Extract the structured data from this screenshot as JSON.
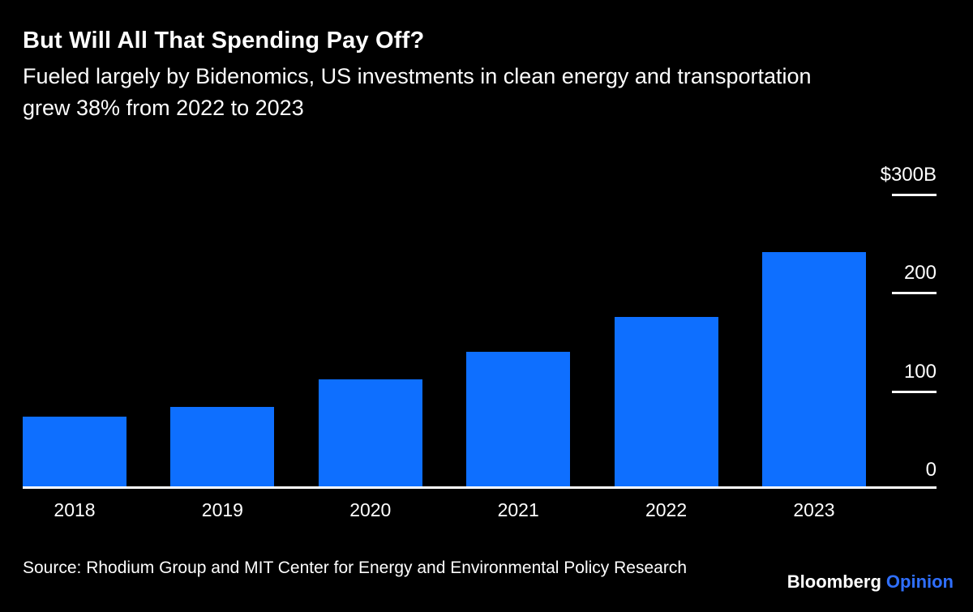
{
  "header": {
    "title": "But Will All That Spending Pay Off?",
    "subtitle": "Fueled largely by Bidenomics, US investments in clean energy and transportation grew 38% from 2022 to 2023"
  },
  "chart_data": {
    "type": "bar",
    "categories": [
      "2018",
      "2019",
      "2020",
      "2021",
      "2022",
      "2023"
    ],
    "values": [
      73,
      83,
      111,
      139,
      175,
      241
    ],
    "unit": "billions of US dollars",
    "title": "US investments in clean energy and transportation",
    "xlabel": "",
    "ylabel": "",
    "ylim": [
      0,
      300
    ],
    "yticks": [
      {
        "value": 300,
        "label": "$300B"
      },
      {
        "value": 200,
        "label": "200"
      },
      {
        "value": 100,
        "label": "100"
      },
      {
        "value": 0,
        "label": "0"
      }
    ],
    "legend": "none",
    "grid": "right-side tick marks only",
    "bar_color": "#0e6fff",
    "background_color": "#000000",
    "axis_color": "#ffffff"
  },
  "footer": {
    "source": "Source: Rhodium Group and MIT Center for Energy and Environmental Policy Research",
    "brand": {
      "name": "Bloomberg",
      "suffix": "Opinion",
      "suffix_color": "#2f6fff"
    }
  }
}
